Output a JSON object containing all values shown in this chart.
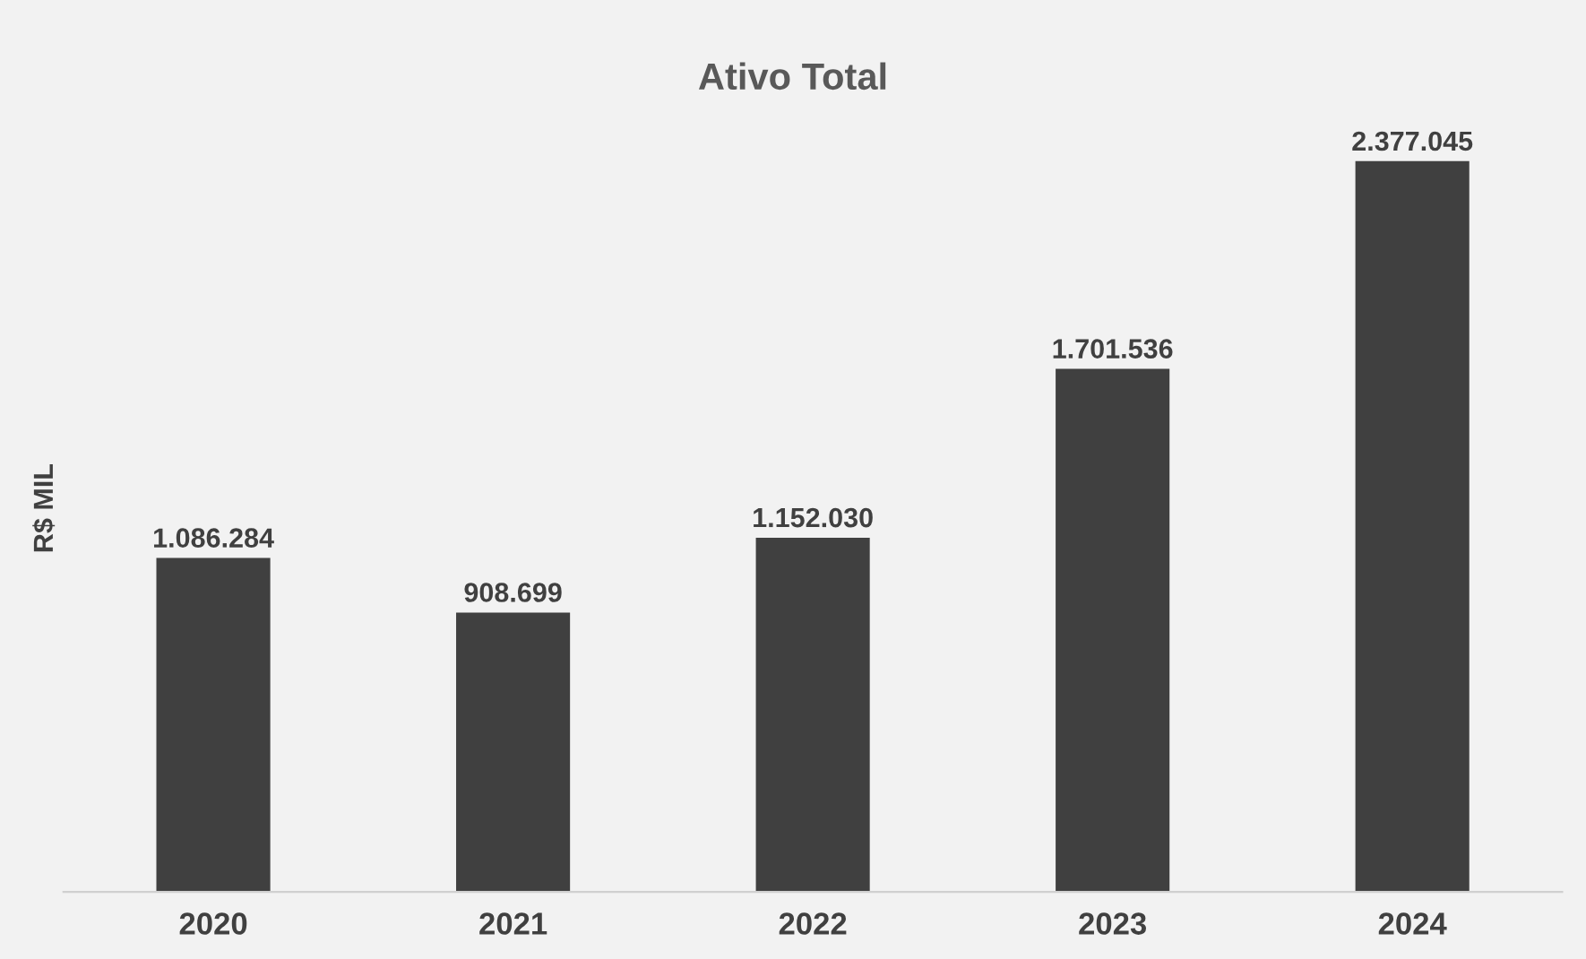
{
  "chart_data": {
    "type": "bar",
    "title": "Ativo Total",
    "ylabel": "R$ MIL",
    "categories": [
      "2020",
      "2021",
      "2022",
      "2023",
      "2024"
    ],
    "values": [
      1086284,
      908699,
      1152030,
      1701536,
      2377045
    ],
    "value_labels": [
      "1.086.284",
      "908.699",
      "1.152.030",
      "1.701.536",
      "2.377.045"
    ],
    "color": "#404040",
    "grid": false,
    "legend": false,
    "tick_labels": "x"
  }
}
